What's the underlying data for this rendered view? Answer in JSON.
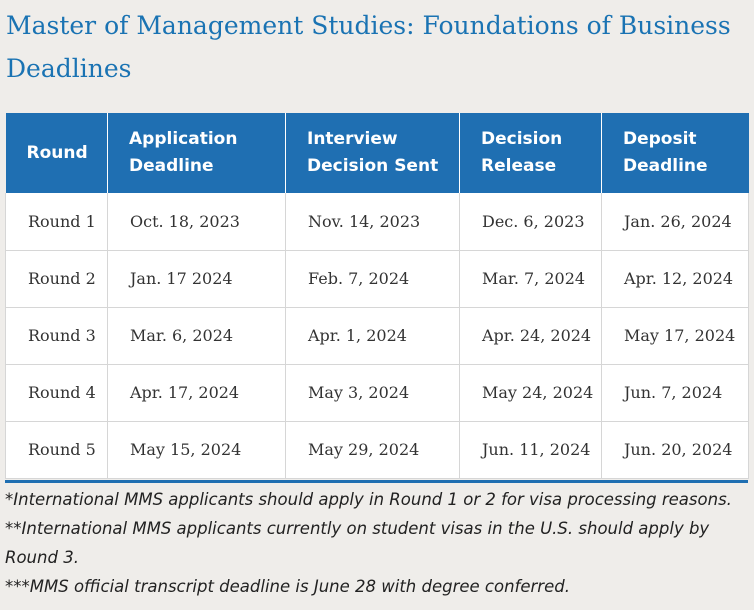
{
  "title": {
    "line1": "Master of Management Studies: Foundations of Business",
    "line2": "Deadlines"
  },
  "table": {
    "headers": [
      {
        "line1": "Round",
        "line2": ""
      },
      {
        "line1": "Application",
        "line2": "Deadline"
      },
      {
        "line1": "Interview",
        "line2": "Decision Sent"
      },
      {
        "line1": "Decision",
        "line2": "Release"
      },
      {
        "line1": "Deposit",
        "line2": "Deadline"
      }
    ],
    "rows": [
      [
        "Round 1",
        "Oct. 18, 2023",
        "Nov. 14, 2023",
        "Dec. 6, 2023",
        "Jan. 26, 2024"
      ],
      [
        "Round 2",
        "Jan. 17 2024",
        "Feb. 7, 2024",
        "Mar. 7, 2024",
        "Apr. 12, 2024"
      ],
      [
        "Round 3",
        "Mar. 6, 2024",
        "Apr. 1, 2024",
        "Apr. 24, 2024",
        "May 17, 2024"
      ],
      [
        "Round 4",
        "Apr. 17, 2024",
        "May 3, 2024",
        "May 24, 2024",
        "Jun. 7, 2024"
      ],
      [
        "Round 5",
        "May 15, 2024",
        "May 29, 2024",
        "Jun. 11, 2024",
        "Jun. 20, 2024"
      ]
    ]
  },
  "notes": [
    "*International MMS applicants should apply in Round 1 or 2 for visa processing reasons.",
    "**International MMS applicants currently on student visas in the U.S. should apply by Round 3.",
    "***MMS official transcript deadline is June 28 with degree conferred."
  ],
  "colors": {
    "header_bg": "#1f6fb2",
    "title": "#1a73b3",
    "page_bg": "#efedea"
  }
}
